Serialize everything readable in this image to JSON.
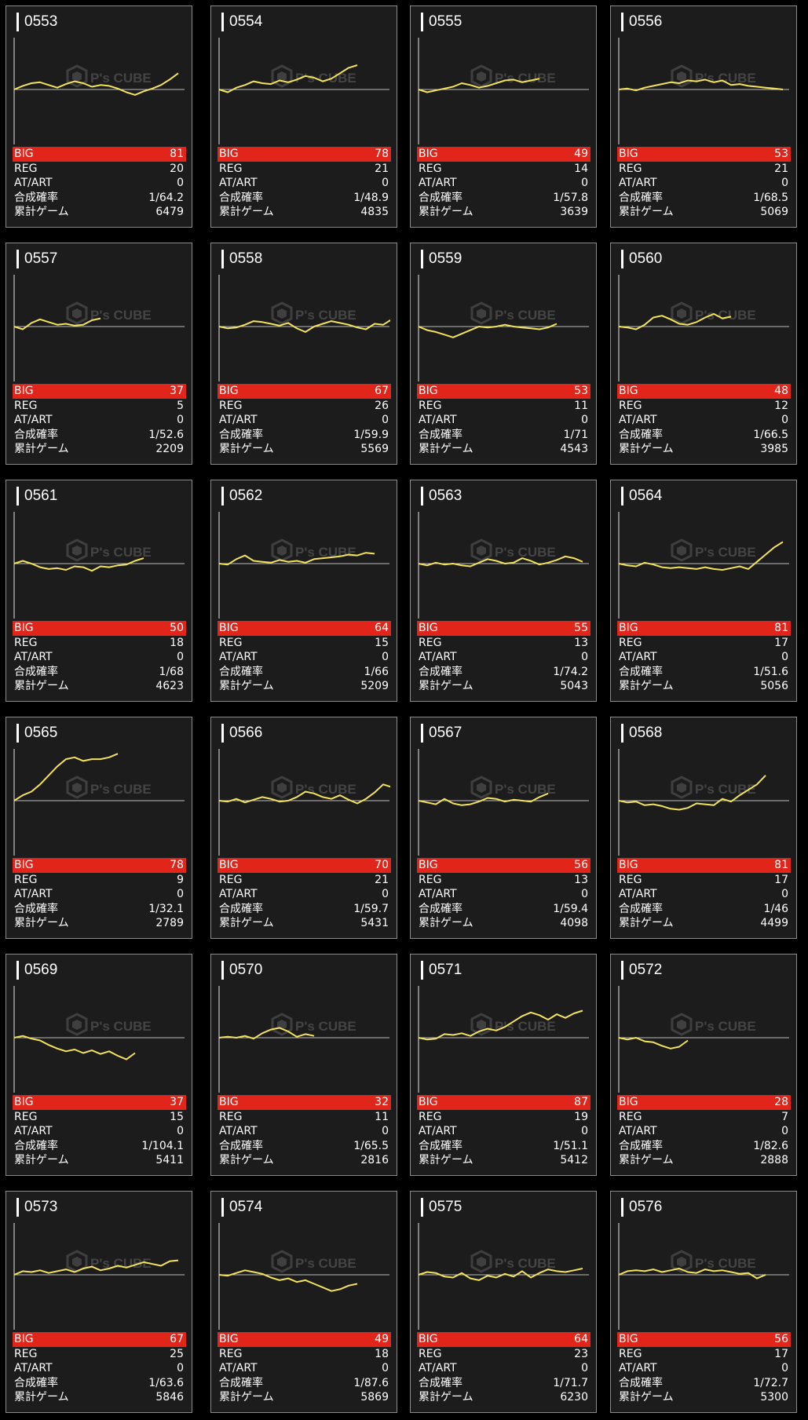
{
  "colors": {
    "big_bar": "#e1251b",
    "line": "#f2e35a",
    "card_bg": "#1c1c1c",
    "border": "#8a8a8a"
  },
  "watermark": {
    "icon": "cube-logo-icon",
    "text": "P's CUBE"
  },
  "labels": {
    "big": "BIG",
    "reg": "REG",
    "at_art": "AT/ART",
    "rate": "合成確率",
    "games": "累計ゲーム"
  },
  "machines": [
    {
      "id": "0553",
      "big": "81",
      "reg": "20",
      "at_art": "0",
      "rate": "1/64.2",
      "games": "6479",
      "chart_data": {
        "type": "line",
        "values": [
          0,
          4,
          7,
          8,
          5,
          2,
          6,
          9,
          7,
          3,
          5,
          4,
          1,
          -3,
          -6,
          -2,
          1,
          5,
          11,
          18
        ]
      }
    },
    {
      "id": "0554",
      "big": "78",
      "reg": "21",
      "at_art": "0",
      "rate": "1/48.9",
      "games": "4835",
      "chart_data": {
        "type": "line",
        "values": [
          0,
          -3,
          2,
          5,
          9,
          7,
          6,
          10,
          8,
          11,
          15,
          13,
          9,
          12,
          18,
          24,
          27
        ]
      }
    },
    {
      "id": "0555",
      "big": "49",
      "reg": "14",
      "at_art": "0",
      "rate": "1/57.8",
      "games": "3639",
      "chart_data": {
        "type": "line",
        "values": [
          0,
          -3,
          -1,
          1,
          3,
          7,
          5,
          2,
          4,
          7,
          10,
          11,
          8,
          10,
          12
        ]
      }
    },
    {
      "id": "0556",
      "big": "53",
      "reg": "21",
      "at_art": "0",
      "rate": "1/68.5",
      "games": "5069",
      "chart_data": {
        "type": "line",
        "values": [
          0,
          1,
          -1,
          2,
          4,
          6,
          8,
          7,
          10,
          9,
          11,
          8,
          10,
          5,
          6,
          4,
          3,
          2,
          1,
          0
        ]
      }
    },
    {
      "id": "0557",
      "big": "37",
      "reg": "5",
      "at_art": "0",
      "rate": "1/52.6",
      "games": "2209",
      "chart_data": {
        "type": "line",
        "values": [
          0,
          -3,
          4,
          8,
          5,
          2,
          3,
          1,
          2,
          7,
          9
        ]
      }
    },
    {
      "id": "0558",
      "big": "67",
      "reg": "26",
      "at_art": "0",
      "rate": "1/59.9",
      "games": "5569",
      "chart_data": {
        "type": "line",
        "values": [
          0,
          -2,
          -1,
          2,
          6,
          5,
          3,
          1,
          4,
          -2,
          -6,
          0,
          3,
          6,
          4,
          2,
          -1,
          -3,
          3,
          2,
          8
        ]
      }
    },
    {
      "id": "0559",
      "big": "53",
      "reg": "11",
      "at_art": "0",
      "rate": "1/71",
      "games": "4543",
      "chart_data": {
        "type": "line",
        "values": [
          0,
          -4,
          -6,
          -9,
          -12,
          -8,
          -4,
          0,
          -1,
          0,
          2,
          0,
          -1,
          -2,
          -3,
          -1,
          3
        ]
      }
    },
    {
      "id": "0560",
      "big": "48",
      "reg": "12",
      "at_art": "0",
      "rate": "1/66.5",
      "games": "3985",
      "chart_data": {
        "type": "line",
        "values": [
          0,
          -1,
          -3,
          2,
          10,
          12,
          8,
          3,
          2,
          5,
          10,
          14,
          9,
          11
        ]
      }
    },
    {
      "id": "0561",
      "big": "50",
      "reg": "18",
      "at_art": "0",
      "rate": "1/68",
      "games": "4623",
      "chart_data": {
        "type": "line",
        "values": [
          0,
          3,
          0,
          -4,
          -6,
          -5,
          -7,
          -3,
          -4,
          -8,
          -3,
          -4,
          -2,
          -1,
          3,
          6
        ]
      }
    },
    {
      "id": "0562",
      "big": "64",
      "reg": "15",
      "at_art": "0",
      "rate": "1/66",
      "games": "5209",
      "chart_data": {
        "type": "line",
        "values": [
          0,
          -1,
          5,
          9,
          3,
          2,
          1,
          4,
          2,
          3,
          1,
          5,
          6,
          7,
          8,
          10,
          9,
          12,
          11
        ]
      }
    },
    {
      "id": "0563",
      "big": "55",
      "reg": "13",
      "at_art": "0",
      "rate": "1/74.2",
      "games": "5043",
      "chart_data": {
        "type": "line",
        "values": [
          0,
          -2,
          1,
          -1,
          0,
          -2,
          -3,
          1,
          5,
          3,
          0,
          1,
          6,
          3,
          -1,
          1,
          4,
          8,
          6,
          2
        ]
      }
    },
    {
      "id": "0564",
      "big": "81",
      "reg": "17",
      "at_art": "0",
      "rate": "1/51.6",
      "games": "5056",
      "chart_data": {
        "type": "line",
        "values": [
          0,
          -2,
          -3,
          1,
          -1,
          -4,
          -5,
          -4,
          -5,
          -6,
          -4,
          -6,
          -7,
          -5,
          -3,
          -6,
          2,
          10,
          18,
          24
        ]
      }
    },
    {
      "id": "0565",
      "big": "78",
      "reg": "9",
      "at_art": "0",
      "rate": "1/32.1",
      "games": "2789",
      "chart_data": {
        "type": "line",
        "values": [
          0,
          6,
          10,
          18,
          28,
          38,
          46,
          48,
          44,
          46,
          46,
          48,
          52
        ]
      }
    },
    {
      "id": "0566",
      "big": "70",
      "reg": "21",
      "at_art": "0",
      "rate": "1/59.7",
      "games": "5431",
      "chart_data": {
        "type": "line",
        "values": [
          0,
          -1,
          2,
          -2,
          1,
          4,
          2,
          -1,
          0,
          4,
          10,
          8,
          4,
          2,
          6,
          1,
          -3,
          2,
          9,
          18,
          15
        ]
      }
    },
    {
      "id": "0567",
      "big": "56",
      "reg": "13",
      "at_art": "0",
      "rate": "1/59.4",
      "games": "4098",
      "chart_data": {
        "type": "line",
        "values": [
          0,
          -2,
          -4,
          2,
          -3,
          -5,
          -4,
          -1,
          3,
          2,
          -1,
          1,
          0,
          -1,
          4,
          8
        ]
      }
    },
    {
      "id": "0568",
      "big": "81",
      "reg": "17",
      "at_art": "0",
      "rate": "1/46",
      "games": "4499",
      "chart_data": {
        "type": "line",
        "values": [
          0,
          -2,
          -1,
          -5,
          -4,
          -6,
          -9,
          -10,
          -8,
          -3,
          -4,
          -5,
          2,
          -1,
          6,
          12,
          18,
          28
        ]
      }
    },
    {
      "id": "0569",
      "big": "37",
      "reg": "15",
      "at_art": "0",
      "rate": "1/104.1",
      "games": "5411",
      "chart_data": {
        "type": "line",
        "values": [
          0,
          2,
          -1,
          -3,
          -8,
          -12,
          -15,
          -13,
          -17,
          -14,
          -18,
          -15,
          -20,
          -24,
          -17
        ]
      }
    },
    {
      "id": "0570",
      "big": "32",
      "reg": "11",
      "at_art": "0",
      "rate": "1/65.5",
      "games": "2816",
      "chart_data": {
        "type": "line",
        "values": [
          0,
          1,
          0,
          2,
          -1,
          5,
          9,
          11,
          7,
          1,
          4,
          2
        ]
      }
    },
    {
      "id": "0571",
      "big": "87",
      "reg": "19",
      "at_art": "0",
      "rate": "1/51.1",
      "games": "5412",
      "chart_data": {
        "type": "line",
        "values": [
          0,
          -2,
          -1,
          4,
          3,
          5,
          2,
          7,
          10,
          8,
          12,
          18,
          24,
          28,
          25,
          20,
          26,
          22,
          27,
          30
        ]
      }
    },
    {
      "id": "0572",
      "big": "28",
      "reg": "7",
      "at_art": "0",
      "rate": "1/82.6",
      "games": "2888",
      "chart_data": {
        "type": "line",
        "values": [
          0,
          -2,
          0,
          -4,
          -5,
          -9,
          -12,
          -10,
          -3
        ]
      }
    },
    {
      "id": "0573",
      "big": "67",
      "reg": "25",
      "at_art": "0",
      "rate": "1/63.6",
      "games": "5846",
      "chart_data": {
        "type": "line",
        "values": [
          0,
          4,
          3,
          5,
          2,
          4,
          6,
          3,
          7,
          9,
          5,
          7,
          10,
          8,
          11,
          14,
          12,
          10,
          15,
          16
        ]
      }
    },
    {
      "id": "0574",
      "big": "49",
      "reg": "18",
      "at_art": "0",
      "rate": "1/87.6",
      "games": "5869",
      "chart_data": {
        "type": "line",
        "values": [
          0,
          -1,
          2,
          5,
          3,
          1,
          -3,
          -6,
          -4,
          -8,
          -6,
          -10,
          -14,
          -18,
          -16,
          -12,
          -10
        ]
      }
    },
    {
      "id": "0575",
      "big": "64",
      "reg": "23",
      "at_art": "0",
      "rate": "1/71.7",
      "games": "6230",
      "chart_data": {
        "type": "line",
        "values": [
          0,
          3,
          2,
          -2,
          -3,
          2,
          -4,
          -6,
          -1,
          -3,
          1,
          -2,
          4,
          -3,
          2,
          6,
          4,
          3,
          5,
          7
        ]
      }
    },
    {
      "id": "0576",
      "big": "56",
      "reg": "17",
      "at_art": "0",
      "rate": "1/72.7",
      "games": "5300",
      "chart_data": {
        "type": "line",
        "values": [
          0,
          4,
          5,
          4,
          6,
          3,
          5,
          7,
          3,
          2,
          6,
          4,
          5,
          3,
          1,
          2,
          -4,
          0
        ]
      }
    }
  ]
}
